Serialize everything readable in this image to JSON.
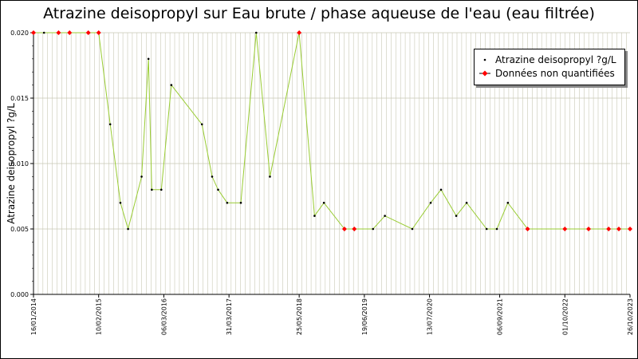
{
  "chart_data": {
    "type": "line",
    "title": "Atrazine deisopropyl sur Eau brute / phase aqueuse de l'eau (eau filtrée)",
    "ylabel": "Atrazine deisopropyl ?g/L",
    "xlabel": "",
    "ylim": [
      0,
      0.02
    ],
    "yticks": [
      "0.000",
      "0.005",
      "0.010",
      "0.015",
      "0.020"
    ],
    "xlim": [
      "2014-01-16",
      "2023-10-26"
    ],
    "xticks": [
      "16/01/2014",
      "10/02/2015",
      "06/03/2016",
      "31/03/2017",
      "25/05/2018",
      "19/06/2019",
      "13/07/2020",
      "06/09/2021",
      "01/10/2022",
      "26/10/2023"
    ],
    "grid": true,
    "legend_position": "top-right",
    "colors": {
      "line": "#99cc33",
      "point": "#000000",
      "unquantified": "#ff0000",
      "grid": "#c8c8b4"
    },
    "series": [
      {
        "name": "Atrazine deisopropyl ?g/L",
        "style": "line"
      },
      {
        "name": "Données non quantifiées",
        "style": "marker"
      }
    ],
    "points": [
      {
        "x": "2014-01-16",
        "y": 0.02,
        "q": false
      },
      {
        "x": "2014-03-20",
        "y": 0.02,
        "q": true
      },
      {
        "x": "2014-06-15",
        "y": 0.02,
        "q": false
      },
      {
        "x": "2014-08-20",
        "y": 0.02,
        "q": false
      },
      {
        "x": "2014-12-10",
        "y": 0.02,
        "q": false
      },
      {
        "x": "2015-02-10",
        "y": 0.02,
        "q": false
      },
      {
        "x": "2015-04-20",
        "y": 0.013,
        "q": true
      },
      {
        "x": "2015-06-20",
        "y": 0.007,
        "q": true
      },
      {
        "x": "2015-08-05",
        "y": 0.005,
        "q": true
      },
      {
        "x": "2015-10-25",
        "y": 0.009,
        "q": true
      },
      {
        "x": "2015-12-05",
        "y": 0.018,
        "q": true
      },
      {
        "x": "2015-12-25",
        "y": 0.008,
        "q": true
      },
      {
        "x": "2016-02-20",
        "y": 0.008,
        "q": true
      },
      {
        "x": "2016-04-20",
        "y": 0.016,
        "q": true
      },
      {
        "x": "2016-10-20",
        "y": 0.013,
        "q": true
      },
      {
        "x": "2016-12-20",
        "y": 0.009,
        "q": true
      },
      {
        "x": "2017-01-25",
        "y": 0.008,
        "q": true
      },
      {
        "x": "2017-03-20",
        "y": 0.007,
        "q": true
      },
      {
        "x": "2017-06-10",
        "y": 0.007,
        "q": true
      },
      {
        "x": "2017-09-10",
        "y": 0.02,
        "q": true
      },
      {
        "x": "2017-12-01",
        "y": 0.009,
        "q": true
      },
      {
        "x": "2018-05-25",
        "y": 0.02,
        "q": false
      },
      {
        "x": "2018-08-25",
        "y": 0.006,
        "q": true
      },
      {
        "x": "2018-10-20",
        "y": 0.007,
        "q": true
      },
      {
        "x": "2019-02-20",
        "y": 0.005,
        "q": false
      },
      {
        "x": "2019-04-20",
        "y": 0.005,
        "q": false
      },
      {
        "x": "2019-08-10",
        "y": 0.005,
        "q": true
      },
      {
        "x": "2019-10-20",
        "y": 0.006,
        "q": true
      },
      {
        "x": "2020-04-01",
        "y": 0.005,
        "q": true
      },
      {
        "x": "2020-07-20",
        "y": 0.007,
        "q": true
      },
      {
        "x": "2020-09-20",
        "y": 0.008,
        "q": true
      },
      {
        "x": "2020-12-20",
        "y": 0.006,
        "q": true
      },
      {
        "x": "2021-02-20",
        "y": 0.007,
        "q": true
      },
      {
        "x": "2021-06-20",
        "y": 0.005,
        "q": true
      },
      {
        "x": "2021-08-20",
        "y": 0.005,
        "q": true
      },
      {
        "x": "2021-10-25",
        "y": 0.007,
        "q": true
      },
      {
        "x": "2022-02-20",
        "y": 0.005,
        "q": false
      },
      {
        "x": "2022-10-01",
        "y": 0.005,
        "q": false
      },
      {
        "x": "2023-02-20",
        "y": 0.005,
        "q": false
      },
      {
        "x": "2023-06-20",
        "y": 0.005,
        "q": false
      },
      {
        "x": "2023-08-20",
        "y": 0.005,
        "q": false
      },
      {
        "x": "2023-10-26",
        "y": 0.005,
        "q": false
      }
    ]
  }
}
